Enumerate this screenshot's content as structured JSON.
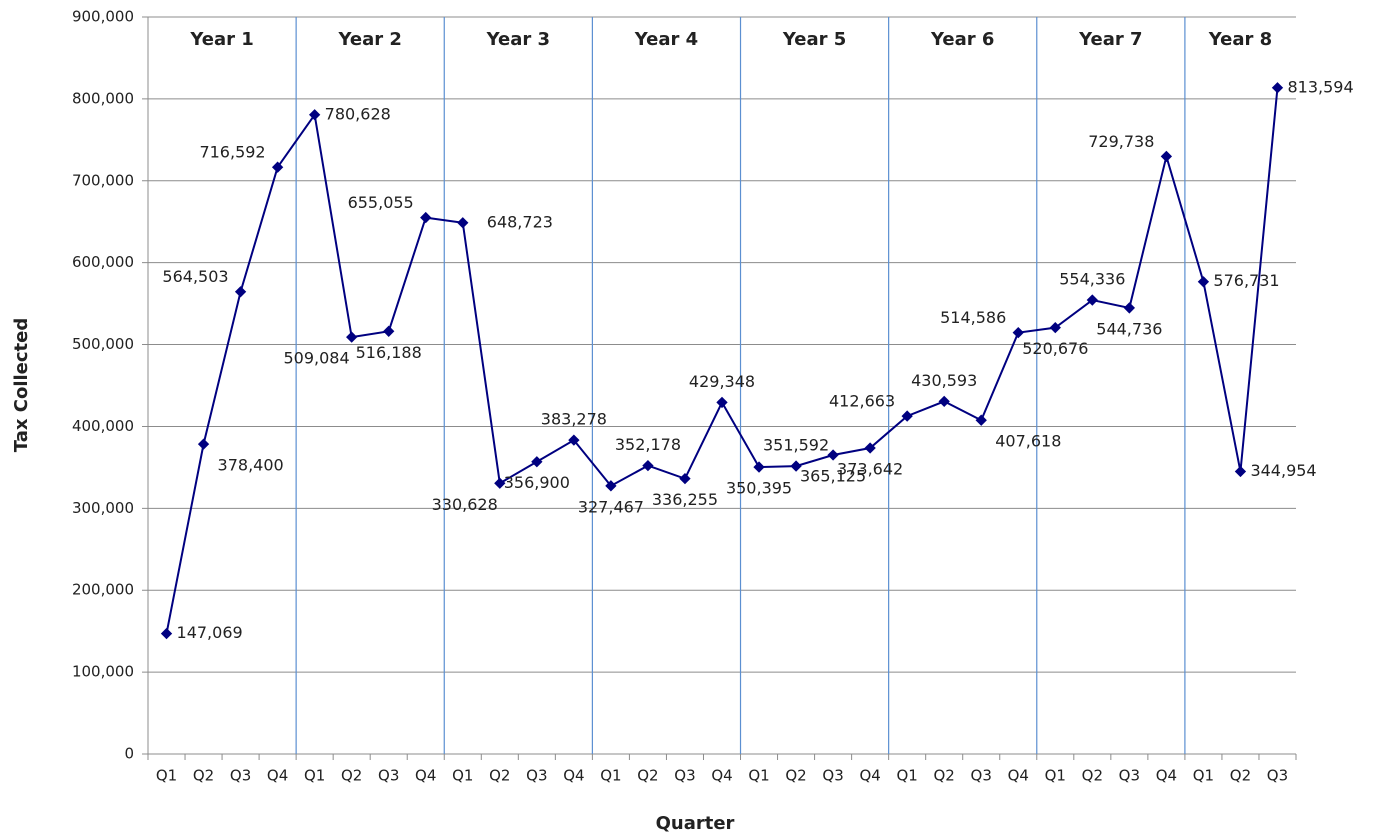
{
  "chart_data": {
    "type": "line",
    "x_label": "Quarter",
    "y_label": "Tax Collected",
    "groups": [
      "Year 1",
      "Year 2",
      "Year 3",
      "Year 4",
      "Year 5",
      "Year 6",
      "Year 7",
      "Year 8"
    ],
    "categories": [
      "Q1",
      "Q2",
      "Q3",
      "Q4",
      "Q1",
      "Q2",
      "Q3",
      "Q4",
      "Q1",
      "Q2",
      "Q3",
      "Q4",
      "Q1",
      "Q2",
      "Q3",
      "Q4",
      "Q1",
      "Q2",
      "Q3",
      "Q4",
      "Q1",
      "Q2",
      "Q3",
      "Q4",
      "Q1",
      "Q2",
      "Q3",
      "Q4",
      "Q1",
      "Q2",
      "Q3"
    ],
    "values": [
      147069,
      378400,
      564503,
      716592,
      780628,
      509084,
      516188,
      655055,
      648723,
      330628,
      356900,
      383278,
      327467,
      352178,
      336255,
      429348,
      350395,
      351592,
      365125,
      373642,
      412663,
      430593,
      407618,
      514586,
      520676,
      554336,
      544736,
      729738,
      576731,
      344954,
      813594
    ],
    "value_labels": [
      "147,069",
      "378,400",
      "564,503",
      "716,592",
      "780,628",
      "509,084",
      "516,188",
      "655,055",
      "648,723",
      "330,628",
      "356,900",
      "383,278",
      "327,467",
      "352,178",
      "336,255",
      "429,348",
      "350,395",
      "351,592",
      "365,125",
      "373,642",
      "412,663",
      "430,593",
      "407,618",
      "514,586",
      "520,676",
      "554,336",
      "544,736",
      "729,738",
      "576,731",
      "344,954",
      "813,594"
    ],
    "color": "#000080",
    "ylim": [
      0,
      900000
    ],
    "yticks": [
      0,
      {
        "value": 100000,
        "label": "100,000"
      },
      {
        "value": 200000,
        "label": "200,000"
      },
      {
        "value": 300000,
        "label": "300,000"
      },
      {
        "value": 400000,
        "label": "400,000"
      },
      {
        "value": 500000,
        "label": "500,000"
      },
      {
        "value": 600000,
        "label": "600,000"
      },
      {
        "value": 700000,
        "label": "700,000"
      },
      {
        "value": 800000,
        "label": "800,000"
      },
      {
        "value": 900000,
        "label": "900,000"
      }
    ],
    "grid": true
  }
}
